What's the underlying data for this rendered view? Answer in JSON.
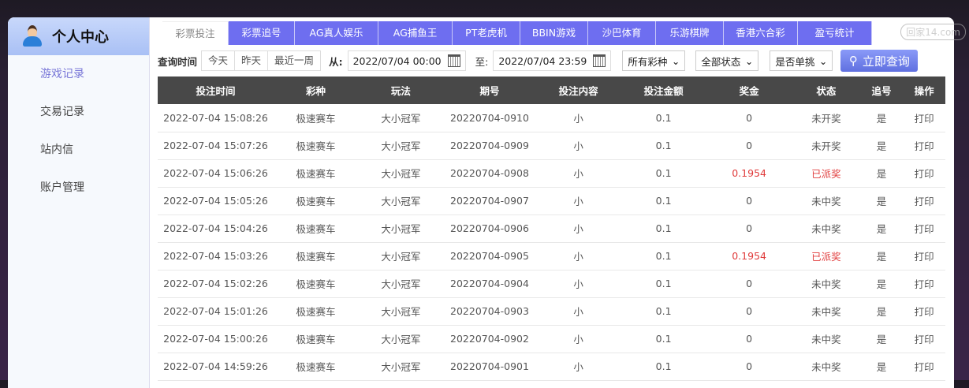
{
  "watermark": "回家14.com",
  "sidebar": {
    "title": "个人中心",
    "items": [
      {
        "label": "游戏记录",
        "active": true
      },
      {
        "label": "交易记录"
      },
      {
        "label": "站内信"
      },
      {
        "label": "账户管理"
      }
    ]
  },
  "tabs": [
    {
      "label": "彩票投注",
      "active": true
    },
    {
      "label": "彩票追号"
    },
    {
      "label": "AG真人娱乐"
    },
    {
      "label": "AG捕鱼王"
    },
    {
      "label": "PT老虎机"
    },
    {
      "label": "BBIN游戏"
    },
    {
      "label": "沙巴体育"
    },
    {
      "label": "乐游棋牌"
    },
    {
      "label": "香港六合彩"
    },
    {
      "label": "盈亏统计"
    }
  ],
  "filters": {
    "label": "查询时间",
    "quick": [
      "今天",
      "昨天",
      "最近一周"
    ],
    "from_label": "从:",
    "from": "2022/07/04 00:00",
    "to_label": "至:",
    "to": "2022/07/04 23:59",
    "lottery": "所有彩种",
    "status": "全部状态",
    "single": "是否单挑",
    "search": "立即查询"
  },
  "colors": {
    "accent": "#6e6ef0",
    "win": "#e03c3c",
    "header": "#484848"
  },
  "table": {
    "headers": [
      "投注时间",
      "彩种",
      "玩法",
      "期号",
      "投注内容",
      "投注金额",
      "奖金",
      "状态",
      "追号",
      "操作"
    ],
    "rows": [
      [
        "2022-07-04 15:08:26",
        "极速赛车",
        "大小冠军",
        "20220704-0910",
        "小",
        "0.1",
        "0",
        "未开奖",
        "是",
        "打印"
      ],
      [
        "2022-07-04 15:07:26",
        "极速赛车",
        "大小冠军",
        "20220704-0909",
        "小",
        "0.1",
        "0",
        "未开奖",
        "是",
        "打印"
      ],
      [
        "2022-07-04 15:06:26",
        "极速赛车",
        "大小冠军",
        "20220704-0908",
        "小",
        "0.1",
        "0.1954",
        "已派奖",
        "是",
        "打印"
      ],
      [
        "2022-07-04 15:05:26",
        "极速赛车",
        "大小冠军",
        "20220704-0907",
        "小",
        "0.1",
        "0",
        "未中奖",
        "是",
        "打印"
      ],
      [
        "2022-07-04 15:04:26",
        "极速赛车",
        "大小冠军",
        "20220704-0906",
        "小",
        "0.1",
        "0",
        "未中奖",
        "是",
        "打印"
      ],
      [
        "2022-07-04 15:03:26",
        "极速赛车",
        "大小冠军",
        "20220704-0905",
        "小",
        "0.1",
        "0.1954",
        "已派奖",
        "是",
        "打印"
      ],
      [
        "2022-07-04 15:02:26",
        "极速赛车",
        "大小冠军",
        "20220704-0904",
        "小",
        "0.1",
        "0",
        "未中奖",
        "是",
        "打印"
      ],
      [
        "2022-07-04 15:01:26",
        "极速赛车",
        "大小冠军",
        "20220704-0903",
        "小",
        "0.1",
        "0",
        "未中奖",
        "是",
        "打印"
      ],
      [
        "2022-07-04 15:00:26",
        "极速赛车",
        "大小冠军",
        "20220704-0902",
        "小",
        "0.1",
        "0",
        "未中奖",
        "是",
        "打印"
      ],
      [
        "2022-07-04 14:59:26",
        "极速赛车",
        "大小冠军",
        "20220704-0901",
        "小",
        "0.1",
        "0",
        "未中奖",
        "是",
        "打印"
      ]
    ]
  }
}
